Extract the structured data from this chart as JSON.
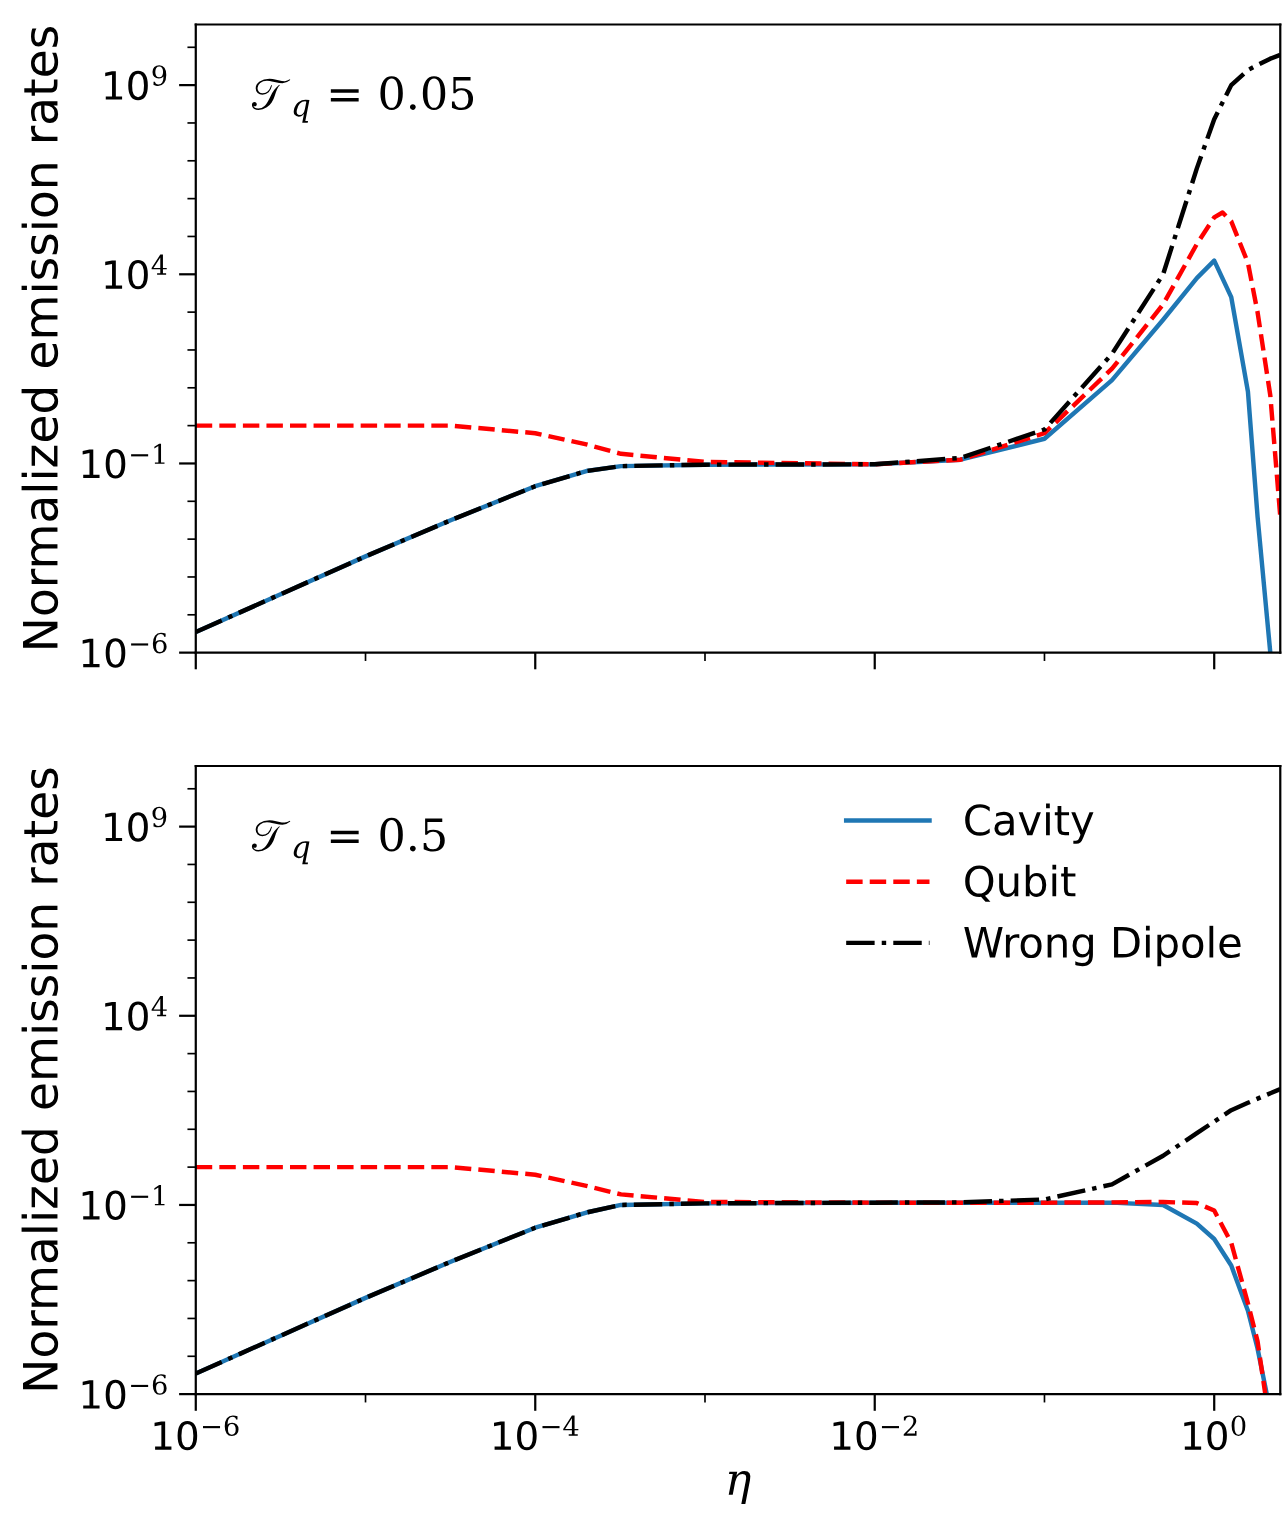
{
  "chart_data": [
    {
      "type": "line",
      "log": "xy",
      "ylabel": "Normalized emission rates",
      "annotations": [
        "𝒯$_{q}$ = 0.05"
      ],
      "tick_labels": "y",
      "legend": false,
      "xlim": [
        1e-06,
        2.45
      ],
      "ylim": [
        1e-06,
        40000000000.0
      ],
      "xticks": [
        1e-06,
        {
          "value": 1e-05,
          "label": null
        },
        0.0001,
        {
          "value": 0.001,
          "label": null
        },
        0.01,
        {
          "value": 0.1,
          "label": null
        },
        1
      ],
      "yticks": [
        {
          "value": 1e-06,
          "label": "10$^{−6}$"
        },
        {
          "value": 1e-05,
          "label": null
        },
        {
          "value": 0.0001,
          "label": null
        },
        {
          "value": 0.001,
          "label": null
        },
        {
          "value": 0.01,
          "label": null
        },
        {
          "value": 0.1,
          "label": "10$^{−1}$"
        },
        {
          "value": 1,
          "label": null
        },
        {
          "value": 10,
          "label": null
        },
        {
          "value": 100,
          "label": null
        },
        {
          "value": 1000,
          "label": null
        },
        {
          "value": 10000.0,
          "label": "10$^{4}$"
        },
        {
          "value": 100000.0,
          "label": null
        },
        {
          "value": 1000000.0,
          "label": null
        },
        {
          "value": 10000000.0,
          "label": null
        },
        {
          "value": 100000000.0,
          "label": null
        },
        {
          "value": 1000000000.0,
          "label": "10$^{9}$"
        },
        {
          "value": 10000000000.0,
          "label": null
        }
      ],
      "series": [
        {
          "color": "#1f77b4",
          "line_style": "solid",
          "x": [
            1e-06,
            1e-05,
            3.2e-05,
            0.0001,
            0.0002,
            0.00032,
            0.001,
            0.01,
            0.032,
            0.1,
            0.25,
            0.5,
            0.79,
            1,
            1.26,
            1.58,
            1.8,
            2.14
          ],
          "values": [
            3.5e-06,
            0.00035,
            0.0032,
            0.025,
            0.063,
            0.085,
            0.093,
            0.095,
            0.126,
            0.45,
            16,
            630,
            7900,
            23000,
            2500,
            7.9,
            0.004,
            1e-06
          ]
        },
        {
          "color": "#ff0000",
          "line_style": "dashed",
          "x": [
            1e-06,
            1e-05,
            3.2e-05,
            0.0001,
            0.0002,
            0.00032,
            0.001,
            0.01,
            0.032,
            0.1,
            0.25,
            0.5,
            0.79,
            1,
            1.12,
            1.26,
            1.58,
            1.8,
            2.14,
            2.45
          ],
          "values": [
            1.0,
            1.0,
            1.0,
            0.63,
            0.32,
            0.18,
            0.11,
            0.095,
            0.126,
            0.63,
            32,
            1600,
            63000,
            320000,
            430000,
            250000,
            20000,
            1000,
            6.3,
            0.004
          ]
        },
        {
          "color": "#000000",
          "line_style": "dashdot",
          "x": [
            1e-06,
            1e-05,
            3.2e-05,
            0.0001,
            0.0002,
            0.00032,
            0.001,
            0.01,
            0.032,
            0.1,
            0.25,
            0.5,
            0.79,
            1,
            1.26,
            1.58,
            1.8,
            2.14,
            2.45
          ],
          "values": [
            3.5e-06,
            0.00035,
            0.0032,
            0.025,
            0.063,
            0.085,
            0.093,
            0.095,
            0.14,
            0.79,
            79,
            10000.0,
            6300000.0,
            126000000.0,
            1000000000.0,
            2500000000.0,
            3400000000.0,
            5000000000.0,
            6300000000.0
          ]
        }
      ]
    },
    {
      "type": "line",
      "log": "xy",
      "xlabel": "η",
      "ylabel": "Normalized emission rates",
      "annotations": [
        "𝒯$_{q}$ = 0.5"
      ],
      "legend": "top right",
      "xlim": [
        1e-06,
        2.45
      ],
      "ylim": [
        1e-06,
        40000000000.0
      ],
      "xticks": [
        {
          "value": 1e-06,
          "label": "10$^{−6}$"
        },
        {
          "value": 1e-05,
          "label": null
        },
        {
          "value": 0.0001,
          "label": "10$^{−4}$"
        },
        {
          "value": 0.001,
          "label": null
        },
        {
          "value": 0.01,
          "label": "10$^{−2}$"
        },
        {
          "value": 0.1,
          "label": null
        },
        {
          "value": 1,
          "label": "10$^{0}$"
        }
      ],
      "yticks": [
        {
          "value": 1e-06,
          "label": "10$^{−6}$"
        },
        {
          "value": 1e-05,
          "label": null
        },
        {
          "value": 0.0001,
          "label": null
        },
        {
          "value": 0.001,
          "label": null
        },
        {
          "value": 0.01,
          "label": null
        },
        {
          "value": 0.1,
          "label": "10$^{−1}$"
        },
        {
          "value": 1,
          "label": null
        },
        {
          "value": 10,
          "label": null
        },
        {
          "value": 100,
          "label": null
        },
        {
          "value": 1000,
          "label": null
        },
        {
          "value": 10000.0,
          "label": "10$^{4}$"
        },
        {
          "value": 100000.0,
          "label": null
        },
        {
          "value": 1000000.0,
          "label": null
        },
        {
          "value": 10000000.0,
          "label": null
        },
        {
          "value": 100000000.0,
          "label": null
        },
        {
          "value": 1000000000.0,
          "label": "10$^{9}$"
        },
        {
          "value": 10000000000.0,
          "label": null
        }
      ],
      "series": [
        {
          "name": "Cavity",
          "color": "#1f77b4",
          "line_style": "solid",
          "x": [
            1e-06,
            1e-05,
            3.2e-05,
            0.0001,
            0.0002,
            0.00032,
            0.001,
            0.01,
            0.1,
            0.25,
            0.5,
            0.79,
            1,
            1.26,
            1.58,
            1.8,
            2.04
          ],
          "values": [
            3.5e-06,
            0.00035,
            0.0032,
            0.025,
            0.063,
            0.1,
            0.11,
            0.115,
            0.115,
            0.115,
            0.1,
            0.032,
            0.0126,
            0.0025,
            0.00016,
            1.6e-05,
            1e-06
          ]
        },
        {
          "name": "Qubit",
          "color": "#ff0000",
          "line_style": "dashed",
          "x": [
            1e-06,
            1e-05,
            3.2e-05,
            0.0001,
            0.0002,
            0.00032,
            0.001,
            0.01,
            0.1,
            0.25,
            0.5,
            0.79,
            1,
            1.26,
            1.58,
            1.8,
            2.0
          ],
          "values": [
            1.0,
            1.0,
            1.0,
            0.63,
            0.32,
            0.19,
            0.12,
            0.115,
            0.115,
            0.117,
            0.12,
            0.112,
            0.071,
            0.01,
            0.00025,
            2.5e-05,
            1e-06
          ]
        },
        {
          "name": "Wrong Dipole",
          "color": "#000000",
          "line_style": "dashdot",
          "x": [
            1e-06,
            1e-05,
            3.2e-05,
            0.0001,
            0.0002,
            0.00032,
            0.001,
            0.01,
            0.032,
            0.1,
            0.25,
            0.5,
            0.79,
            1,
            1.26,
            1.58,
            2.0,
            2.45
          ],
          "values": [
            3.5e-06,
            0.00035,
            0.0032,
            0.025,
            0.063,
            0.1,
            0.11,
            0.115,
            0.117,
            0.14,
            0.35,
            2.0,
            7.9,
            16,
            32,
            50,
            79,
            115
          ]
        }
      ]
    }
  ]
}
